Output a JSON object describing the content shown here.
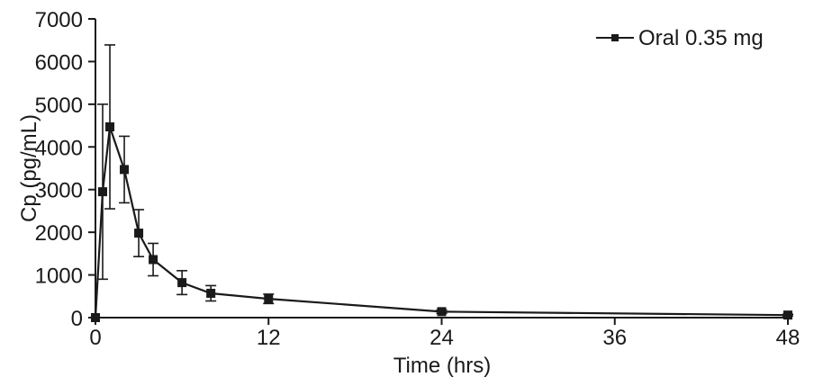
{
  "chart_data": {
    "type": "line",
    "title": "",
    "xlabel": "Time (hrs)",
    "ylabel": "Cp (pg/mL)",
    "xlim": [
      0,
      48
    ],
    "ylim": [
      0,
      7000
    ],
    "x_ticks": [
      0,
      12,
      24,
      36,
      48
    ],
    "y_ticks": [
      0,
      1000,
      2000,
      3000,
      4000,
      5000,
      6000,
      7000
    ],
    "grid": false,
    "legend_position": "top-right",
    "colors": {
      "line": "#1a1a1a",
      "marker": "#1a1a1a"
    },
    "series": [
      {
        "name": "Oral 0.35 mg",
        "marker": "square",
        "points": [
          {
            "x": 0,
            "y": 0,
            "err": 0
          },
          {
            "x": 0.5,
            "y": 2950,
            "err": 2050
          },
          {
            "x": 1,
            "y": 4470,
            "err": 1920
          },
          {
            "x": 2,
            "y": 3470,
            "err": 780
          },
          {
            "x": 3,
            "y": 1980,
            "err": 550
          },
          {
            "x": 4,
            "y": 1360,
            "err": 380
          },
          {
            "x": 6,
            "y": 820,
            "err": 280
          },
          {
            "x": 8,
            "y": 570,
            "err": 180
          },
          {
            "x": 12,
            "y": 440,
            "err": 110
          },
          {
            "x": 24,
            "y": 140,
            "err": 40
          },
          {
            "x": 48,
            "y": 60,
            "err": 20
          }
        ]
      }
    ]
  }
}
